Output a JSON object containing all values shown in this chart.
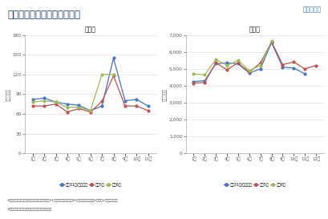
{
  "title": "延べ宿泊者数の推移（年別）",
  "logo_text": "国土交通省",
  "left_title": "新潟県",
  "right_title": "全　国",
  "left_ylabel": "（万人泊）",
  "right_ylabel": "（万人泊）",
  "left_ylim": [
    0,
    180
  ],
  "right_ylim": [
    0,
    7000
  ],
  "left_yticks": [
    0,
    30,
    60,
    90,
    120,
    150,
    180
  ],
  "right_yticks": [
    0,
    1000,
    2000,
    3000,
    4000,
    5000,
    6000,
    7000
  ],
  "left_months": [
    "1月",
    "2月",
    "3月",
    "4月",
    "5月",
    "6月",
    "7月",
    "8月",
    "9月",
    "10月",
    "11月"
  ],
  "right_months": [
    "1月",
    "2月",
    "3月",
    "4月",
    "5月",
    "6月",
    "7月",
    "8月",
    "9月",
    "10月",
    "11月",
    "12月"
  ],
  "legend_labels": [
    "平成31年/令和元年",
    "令和5年",
    "令和6年"
  ],
  "line_colors": [
    "#4472C4",
    "#C0504D",
    "#9BBB59"
  ],
  "left_data": {
    "h31_r1": [
      82,
      84,
      78,
      75,
      73,
      65,
      72,
      145,
      80,
      82,
      72
    ],
    "r5": [
      72,
      72,
      75,
      63,
      68,
      63,
      79,
      118,
      72,
      72,
      65
    ],
    "r6": [
      78,
      80,
      78,
      70,
      70,
      65,
      120,
      120,
      null,
      null,
      null
    ]
  },
  "right_data": {
    "h31_r1": [
      4250,
      4300,
      5300,
      5350,
      5300,
      4750,
      5000,
      6550,
      5100,
      5050,
      4700,
      null
    ],
    "r5": [
      4150,
      4200,
      5350,
      4950,
      5350,
      4800,
      5350,
      6600,
      5250,
      5400,
      5000,
      5200
    ],
    "r6": [
      4700,
      4650,
      5550,
      5200,
      5500,
      4900,
      5200,
      6650,
      null,
      null,
      null,
      null
    ]
  },
  "footer_text1": "※観光庁「宿泊旅行統計調査」による（平成31年、令和元年、令和05年は確定値、令和6年は第2次速報値）。",
  "footer_text2": "※端数処理により合計値が異なる場合がある。",
  "bg_color": "#FFFFFF",
  "header_light_blue": "#D6EAF8",
  "header_blue_bar": "#5B9BD5",
  "title_color": "#1F3864",
  "axis_color": "#595959",
  "grid_color": "#D9D9D9"
}
